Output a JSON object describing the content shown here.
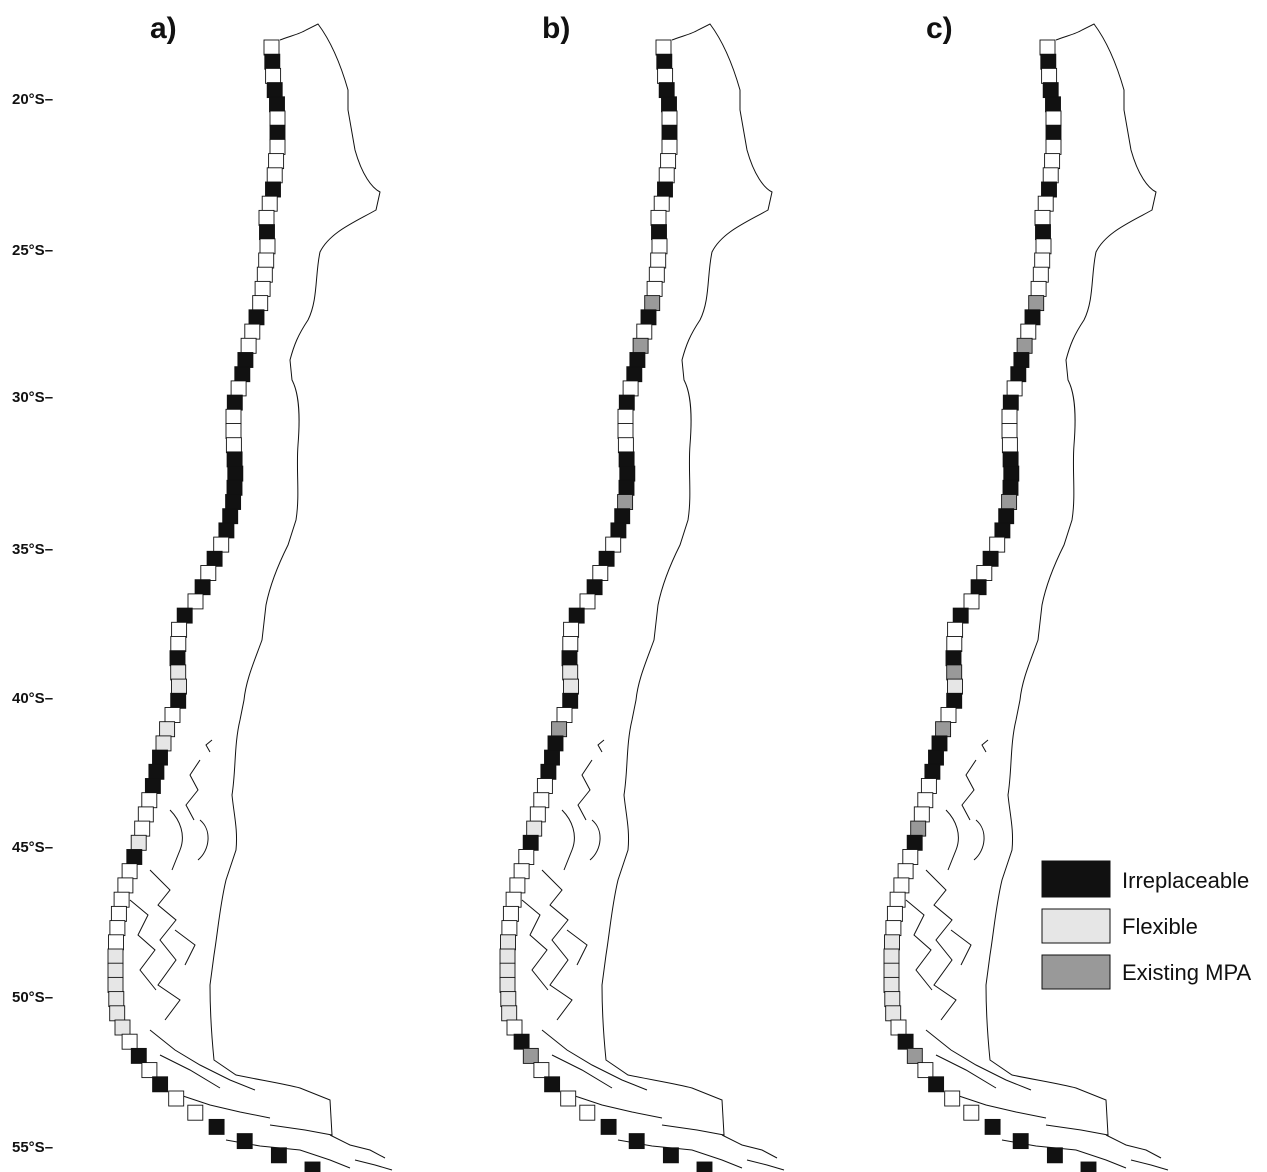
{
  "colors": {
    "irreplaceable": "#111111",
    "flexible": "#e6e6e6",
    "existing_mpa": "#999999",
    "unselected": "#ffffff"
  },
  "latitude_axis": {
    "labels": [
      "20°S–",
      "25°S–",
      "30°S–",
      "35°S–",
      "40°S–",
      "45°S–",
      "50°S–",
      "55°S–"
    ]
  },
  "panels": [
    {
      "label": "a)",
      "cells": "UIUIIUIUUUIUUIUUUUUIUUIIUIUUUIIIIIIUIUIUIUUIFFIUFFIIIUUUFIUUUUUUFFFFFFUIUIUUIIII"
    },
    {
      "label": "b)",
      "cells": "UIUIIUIUUUIUUIUUUUEIUEIIUIUUUIIIEIIUIUIUIUUIFFIUEIIIUUUFIUUUUUUFFFFFFUIEUIUUIIII"
    },
    {
      "label": "c)",
      "cells": "UIUIIUIUUUIUUIUUUUEIUEIIUIUUUIIIEIIUIUIUIUUIEFIUEIIIUUUEIUUUUUUFFFFFFUIEUIUUIIII"
    }
  ],
  "legend": {
    "items": [
      {
        "key": "irreplaceable",
        "label": "Irreplaceable"
      },
      {
        "key": "flexible",
        "label": "Flexible"
      },
      {
        "key": "existing_mpa",
        "label": "Existing MPA"
      }
    ]
  }
}
